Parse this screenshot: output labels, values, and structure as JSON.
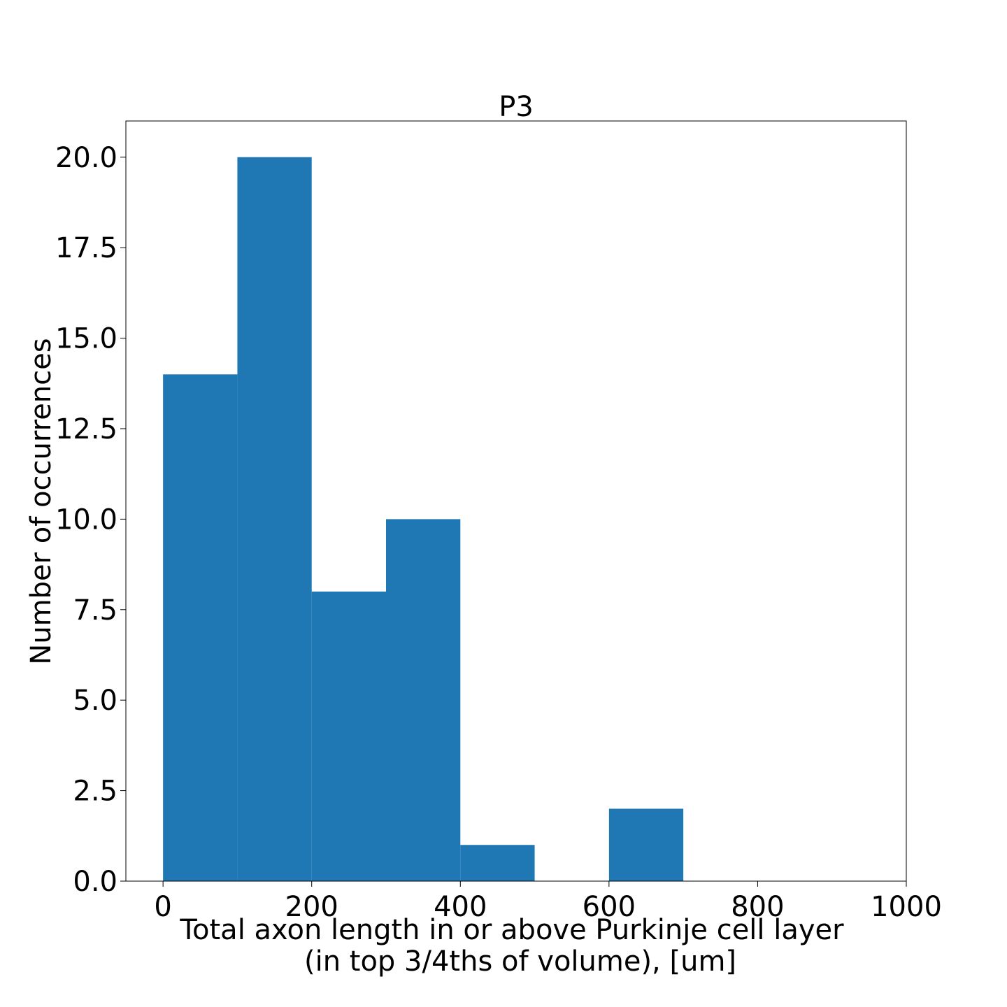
{
  "chart_data": {
    "type": "bar",
    "title": "P3",
    "xlabel": [
      "Total axon length in or above Purkinje cell layer",
      "(in top 3/4ths of volume), [um]"
    ],
    "ylabel": "Number of occurrences",
    "bins": [
      {
        "start": 0,
        "end": 100,
        "count": 14
      },
      {
        "start": 100,
        "end": 200,
        "count": 20
      },
      {
        "start": 200,
        "end": 300,
        "count": 8
      },
      {
        "start": 300,
        "end": 400,
        "count": 10
      },
      {
        "start": 400,
        "end": 500,
        "count": 1
      },
      {
        "start": 500,
        "end": 600,
        "count": 0
      },
      {
        "start": 600,
        "end": 700,
        "count": 2
      }
    ],
    "xlim": [
      -50,
      1000
    ],
    "ylim": [
      0,
      21
    ],
    "xticks": [
      0,
      200,
      400,
      600,
      800,
      1000
    ],
    "xtick_labels": [
      "0",
      "200",
      "400",
      "600",
      "800",
      "1000"
    ],
    "yticks": [
      0,
      2.5,
      5,
      7.5,
      10,
      12.5,
      15,
      17.5,
      20
    ],
    "ytick_labels": [
      "0.0",
      "2.5",
      "5.0",
      "7.5",
      "10.0",
      "12.5",
      "15.0",
      "17.5",
      "20.0"
    ],
    "bar_color": "#1f77b4",
    "grid": false,
    "legend": "none"
  }
}
